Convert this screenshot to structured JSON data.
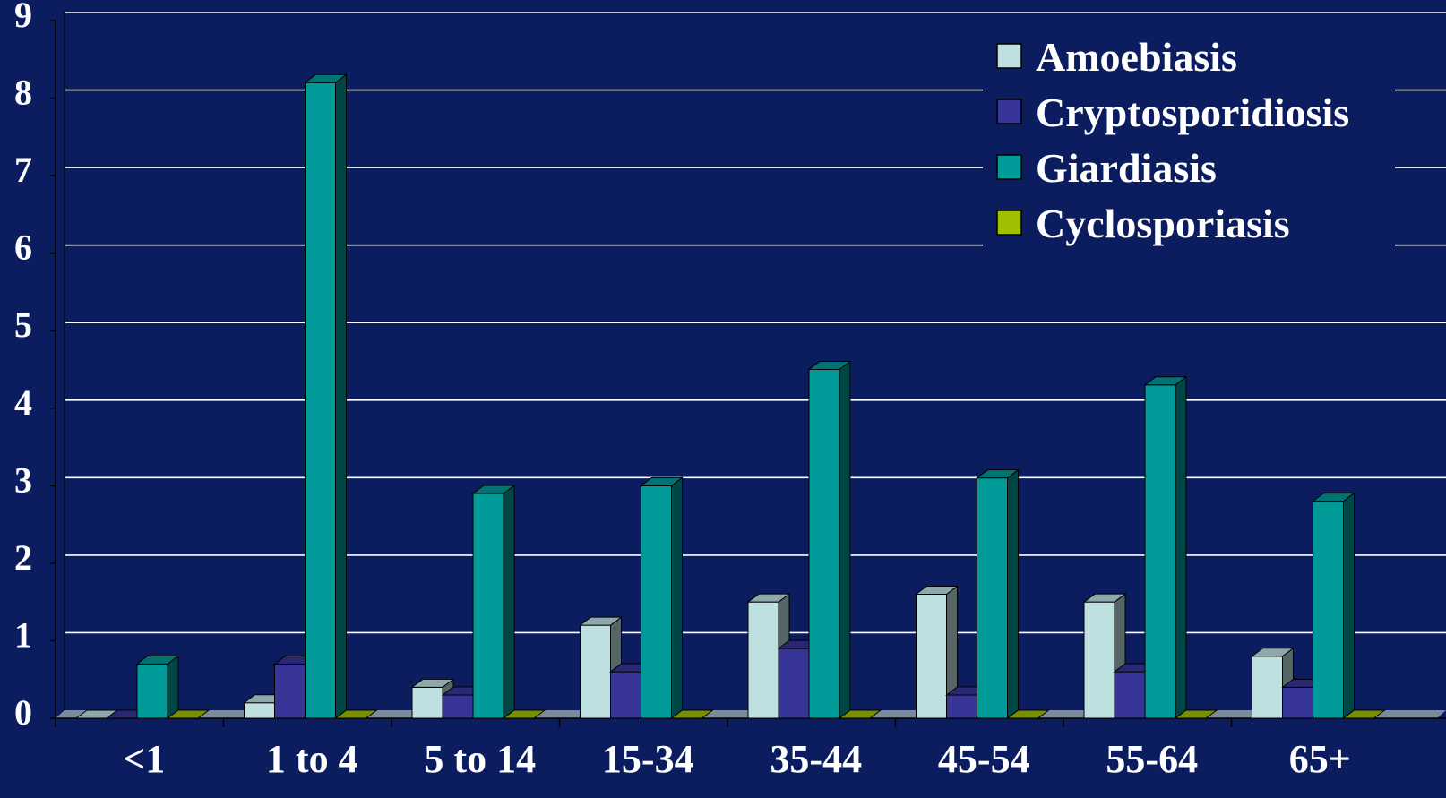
{
  "chart_data": {
    "type": "bar",
    "categories": [
      "<1",
      "1 to 4",
      "5 to 14",
      "15-34",
      "35-44",
      "45-54",
      "55-64",
      "65+"
    ],
    "series": [
      {
        "name": "Amoebiasis",
        "color": "#bfe0e1",
        "values": [
          0,
          0.2,
          0.4,
          1.2,
          1.5,
          1.6,
          1.5,
          0.8
        ]
      },
      {
        "name": "Cryptosporidiosis",
        "color": "#383598",
        "values": [
          0,
          0.7,
          0.3,
          0.6,
          0.9,
          0.3,
          0.6,
          0.4
        ]
      },
      {
        "name": "Giardiasis",
        "color": "#009b98",
        "values": [
          0.7,
          8.2,
          2.9,
          3.0,
          4.5,
          3.1,
          4.3,
          2.8
        ]
      },
      {
        "name": "Cyclosporiasis",
        "color": "#9fbf00",
        "values": [
          0,
          0,
          0,
          0,
          0,
          0,
          0,
          0
        ]
      }
    ],
    "ylim": [
      0,
      9
    ],
    "yticks": [
      "0",
      "1",
      "2",
      "3",
      "4",
      "5",
      "6",
      "7",
      "8",
      "9"
    ],
    "grid": true,
    "legend": "top-right",
    "style": {
      "background": "#0b1d5e",
      "grid_color": "#ffffff",
      "text_color": "#ffffff"
    }
  }
}
